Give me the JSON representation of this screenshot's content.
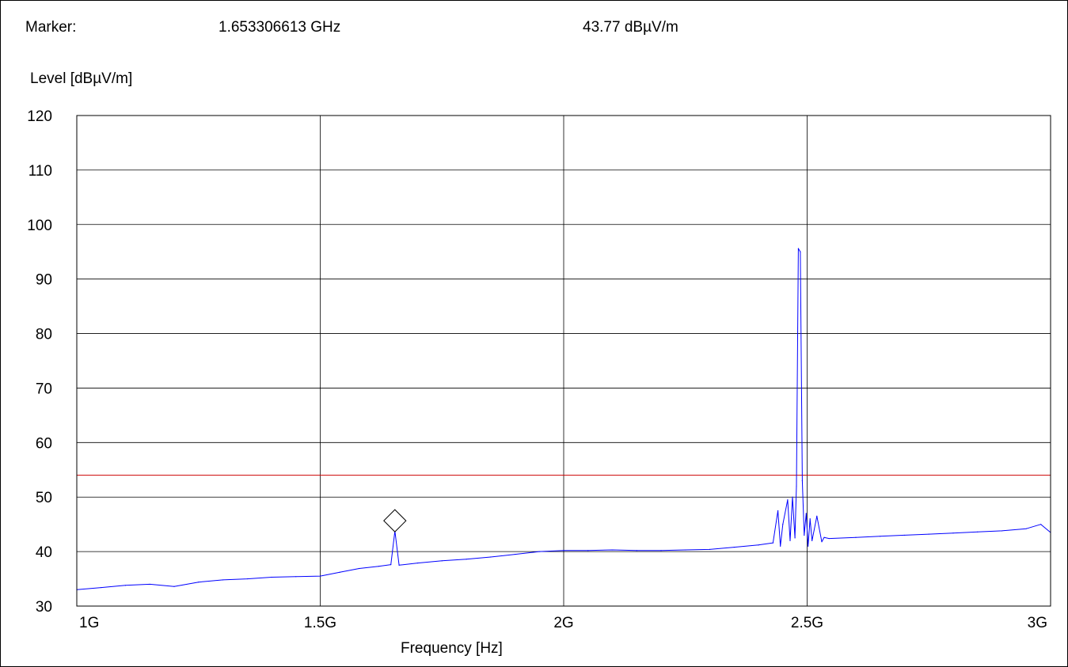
{
  "header": {
    "marker_label": "Marker:",
    "marker_frequency": "1.653306613 GHz",
    "marker_level": "43.77 dBµV/m"
  },
  "colors": {
    "trace": "#0000ff",
    "limit_line": "#cc0000",
    "grid": "#000000",
    "background": "#ffffff"
  },
  "marker_icon": "diamond-marker-icon",
  "chart_data": {
    "type": "line",
    "ylabel": "Level [dBµV/m]",
    "xlabel": "Frequency [Hz]",
    "xlim": [
      1000000000,
      3000000000
    ],
    "ylim": [
      30,
      120
    ],
    "grid": true,
    "x_ticks": [
      {
        "value": 1000000000,
        "label": "1G"
      },
      {
        "value": 1500000000,
        "label": "1.5G"
      },
      {
        "value": 2000000000,
        "label": "2G"
      },
      {
        "value": 2500000000,
        "label": "2.5G"
      },
      {
        "value": 3000000000,
        "label": "3G"
      }
    ],
    "y_ticks": [
      30,
      40,
      50,
      60,
      70,
      80,
      90,
      100,
      110,
      120
    ],
    "limit_line": 54,
    "marker": {
      "x": 1653306613,
      "y": 43.77
    },
    "series": [
      {
        "x": [
          1000000000,
          1050000000,
          1100000000,
          1150000000,
          1200000000,
          1250000000,
          1300000000,
          1350000000,
          1400000000,
          1450000000,
          1500000000,
          1540000000,
          1580000000,
          1620000000,
          1645000000,
          1653306613,
          1662000000,
          1700000000,
          1750000000,
          1800000000,
          1850000000,
          1900000000,
          1950000000,
          2000000000,
          2050000000,
          2100000000,
          2150000000,
          2200000000,
          2250000000,
          2300000000,
          2350000000,
          2400000000,
          2430000000,
          2440000000,
          2445000000,
          2450000000,
          2460000000,
          2465000000,
          2470000000,
          2475000000,
          2478000000,
          2482000000,
          2486000000,
          2490000000,
          2494000000,
          2498000000,
          2502000000,
          2506000000,
          2510000000,
          2520000000,
          2530000000,
          2535000000,
          2545000000,
          2600000000,
          2650000000,
          2700000000,
          2750000000,
          2800000000,
          2850000000,
          2900000000,
          2950000000,
          2980000000,
          3000000000
        ],
        "values": [
          33.0,
          33.4,
          33.8,
          34.0,
          33.6,
          34.4,
          34.8,
          35.0,
          35.3,
          35.4,
          35.5,
          36.2,
          36.9,
          37.3,
          37.6,
          43.77,
          37.5,
          37.9,
          38.3,
          38.6,
          39.0,
          39.5,
          40.0,
          40.2,
          40.2,
          40.3,
          40.2,
          40.2,
          40.3,
          40.4,
          40.8,
          41.2,
          41.6,
          47.5,
          41.0,
          45.0,
          49.5,
          42.0,
          50.0,
          42.5,
          52.0,
          95.6,
          95.0,
          53.0,
          43.0,
          47.0,
          41.0,
          46.0,
          42.0,
          46.5,
          41.8,
          42.6,
          42.4,
          42.6,
          42.8,
          43.0,
          43.2,
          43.4,
          43.6,
          43.8,
          44.2,
          45.0,
          43.5
        ]
      }
    ]
  }
}
